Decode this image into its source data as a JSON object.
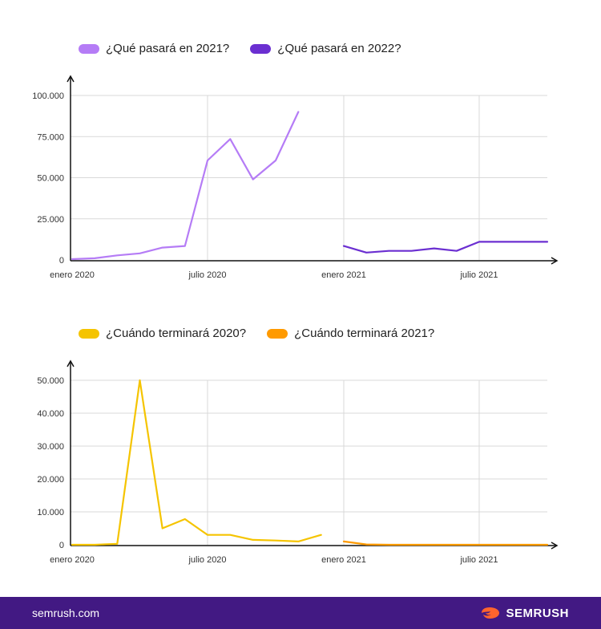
{
  "colors": {
    "series_2021": "#b57cf6",
    "series_2022": "#6b2fd1",
    "series_2020_end": "#f5c400",
    "series_2021_end": "#ff9a00",
    "footer_bg": "#421983",
    "brand_orange": "#ff642d"
  },
  "footer": {
    "url": "semrush.com",
    "brand": "SEMRUSH"
  },
  "chart_data": [
    {
      "type": "line",
      "title": "",
      "xlabel": "",
      "ylabel": "",
      "ylim": [
        0,
        100000
      ],
      "grid": true,
      "legend_position": "top-left",
      "x_tick_labels": [
        "enero 2020",
        "julio 2020",
        "enero 2021",
        "julio 2021"
      ],
      "y_tick_labels": [
        "0",
        "25.000",
        "50.000",
        "75.000",
        "100.000"
      ],
      "y_ticks": [
        0,
        25000,
        50000,
        75000,
        100000
      ],
      "series": [
        {
          "name": "¿Qué pasará en 2021?",
          "x": [
            "2020-01",
            "2020-02",
            "2020-03",
            "2020-04",
            "2020-05",
            "2020-06",
            "2020-07",
            "2020-08",
            "2020-09",
            "2020-10",
            "2020-11",
            "2020-12"
          ],
          "values": [
            500,
            1000,
            2800,
            4000,
            7500,
            8500,
            60500,
            73500,
            49000,
            60500,
            90000,
            null
          ]
        },
        {
          "name": "¿Qué pasará en 2022?",
          "x": [
            "2021-01",
            "2021-02",
            "2021-03",
            "2021-04",
            "2021-05",
            "2021-06",
            "2021-07",
            "2021-08",
            "2021-09",
            "2021-10"
          ],
          "values": [
            8500,
            4500,
            5500,
            5500,
            7000,
            5500,
            11000,
            11000,
            11000,
            11000
          ]
        }
      ]
    },
    {
      "type": "line",
      "title": "",
      "xlabel": "",
      "ylabel": "",
      "ylim": [
        0,
        50000
      ],
      "grid": true,
      "legend_position": "top-left",
      "x_tick_labels": [
        "enero 2020",
        "julio 2020",
        "enero 2021",
        "julio 2021"
      ],
      "y_tick_labels": [
        "0",
        "10.000",
        "20.000",
        "30.000",
        "40.000",
        "50.000"
      ],
      "y_ticks": [
        0,
        10000,
        20000,
        30000,
        40000,
        50000
      ],
      "series": [
        {
          "name": "¿Cuándo terminará 2020?",
          "x": [
            "2020-01",
            "2020-02",
            "2020-03",
            "2020-04",
            "2020-05",
            "2020-06",
            "2020-07",
            "2020-08",
            "2020-09",
            "2020-10",
            "2020-11",
            "2020-12"
          ],
          "values": [
            0,
            0,
            300,
            50000,
            5000,
            7800,
            3000,
            3000,
            1500,
            1300,
            1000,
            3000
          ]
        },
        {
          "name": "¿Cuándo terminará 2021?",
          "x": [
            "2021-01",
            "2021-02",
            "2021-03",
            "2021-04",
            "2021-05",
            "2021-06",
            "2021-07",
            "2021-08",
            "2021-09",
            "2021-10"
          ],
          "values": [
            1000,
            100,
            0,
            0,
            0,
            0,
            0,
            0,
            0,
            0
          ]
        }
      ]
    }
  ]
}
